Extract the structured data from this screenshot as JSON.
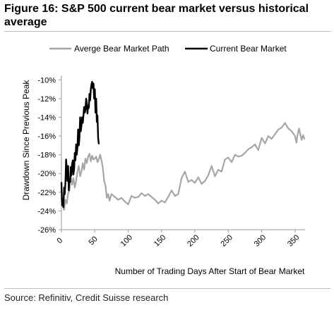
{
  "figure": {
    "title": "Figure 16: S&P 500 current bear market versus historical average",
    "source": "Source: Refinitiv, Credit Suisse research"
  },
  "chart_data": {
    "type": "line",
    "xlabel": "Number of Trading Days After Start of Bear Market",
    "ylabel": "Drawdown Since Previous Peak",
    "xlim": [
      0,
      365
    ],
    "ylim": [
      -26,
      -9
    ],
    "x_ticks": [
      0,
      50,
      100,
      150,
      200,
      250,
      300,
      350
    ],
    "x_tick_labels": [
      "0",
      "50",
      "100",
      "150",
      "200",
      "250",
      "300",
      "350"
    ],
    "y_ticks": [
      -10,
      -12,
      -14,
      -16,
      -18,
      -20,
      -22,
      -24,
      -26
    ],
    "y_tick_labels": [
      "-10%",
      "-12%",
      "-14%",
      "-16%",
      "-18%",
      "-20%",
      "-22%",
      "-24%",
      "-26%"
    ],
    "grid": false,
    "legend_position": "top",
    "series": [
      {
        "name": "Averge Bear Market Path",
        "color": "#a6a6a6",
        "x": [
          0,
          2,
          4,
          6,
          8,
          10,
          12,
          14,
          16,
          18,
          20,
          22,
          24,
          26,
          28,
          30,
          32,
          34,
          36,
          38,
          40,
          42,
          44,
          46,
          48,
          50,
          52,
          54,
          56,
          58,
          60,
          62,
          64,
          66,
          68,
          70,
          72,
          75,
          80,
          85,
          90,
          95,
          100,
          105,
          110,
          115,
          120,
          125,
          130,
          135,
          140,
          145,
          150,
          155,
          160,
          165,
          170,
          175,
          180,
          185,
          190,
          195,
          200,
          205,
          210,
          215,
          220,
          225,
          230,
          235,
          240,
          245,
          250,
          255,
          260,
          265,
          270,
          275,
          280,
          285,
          290,
          295,
          300,
          305,
          310,
          315,
          320,
          325,
          330,
          335,
          340,
          345,
          350,
          352,
          354,
          356,
          358,
          360,
          362,
          364
        ],
        "values": [
          -22.6,
          -23.4,
          -23.9,
          -22.8,
          -23.2,
          -22.1,
          -21.8,
          -20.3,
          -21.2,
          -20.5,
          -21.5,
          -20.8,
          -19.8,
          -19.2,
          -20.3,
          -19.8,
          -18.9,
          -19.6,
          -18.4,
          -18.9,
          -18.2,
          -17.9,
          -18.7,
          -18.1,
          -18.5,
          -18.4,
          -18.2,
          -18.8,
          -18.5,
          -18.0,
          -18.6,
          -19.4,
          -20.8,
          -21.3,
          -22.6,
          -22.2,
          -22.9,
          -22.2,
          -22.5,
          -22.8,
          -22.6,
          -23.0,
          -23.3,
          -22.4,
          -22.6,
          -22.5,
          -22.1,
          -22.4,
          -22.2,
          -22.5,
          -22.8,
          -23.2,
          -22.9,
          -23.1,
          -22.5,
          -21.8,
          -22.4,
          -22.2,
          -20.5,
          -19.8,
          -20.9,
          -20.7,
          -21.0,
          -20.4,
          -21.1,
          -20.8,
          -20.2,
          -19.2,
          -20.3,
          -19.6,
          -19.8,
          -18.5,
          -18.3,
          -18.8,
          -18.0,
          -18.2,
          -18.1,
          -17.8,
          -17.4,
          -17.2,
          -16.9,
          -17.5,
          -16.2,
          -16.8,
          -16.0,
          -16.3,
          -15.8,
          -15.3,
          -15.1,
          -14.6,
          -15.2,
          -15.5,
          -16.0,
          -16.7,
          -15.8,
          -15.2,
          -15.9,
          -16.4,
          -15.9,
          -16.3
        ]
      },
      {
        "name": "Current Bear Market",
        "color": "#000000",
        "x": [
          0,
          1,
          2,
          3,
          4,
          5,
          6,
          7,
          8,
          9,
          10,
          11,
          12,
          13,
          14,
          15,
          16,
          17,
          18,
          19,
          20,
          21,
          22,
          23,
          24,
          25,
          26,
          27,
          28,
          29,
          30,
          31,
          32,
          33,
          34,
          35,
          36,
          37,
          38,
          39,
          40,
          41,
          42,
          43,
          44,
          45,
          46,
          47,
          48,
          49,
          50,
          51,
          52,
          53,
          54,
          55,
          56
        ],
        "values": [
          -21.0,
          -23.4,
          -22.8,
          -23.6,
          -21.5,
          -22.2,
          -20.9,
          -18.5,
          -19.6,
          -20.8,
          -19.2,
          -21.8,
          -20.6,
          -20.9,
          -19.3,
          -20.2,
          -19.0,
          -18.6,
          -20.1,
          -19.5,
          -17.8,
          -18.6,
          -16.9,
          -18.0,
          -17.2,
          -15.3,
          -17.0,
          -16.2,
          -14.0,
          -15.5,
          -14.9,
          -14.0,
          -14.6,
          -13.8,
          -12.9,
          -13.5,
          -13.2,
          -12.0,
          -12.4,
          -13.6,
          -12.8,
          -13.0,
          -11.5,
          -12.2,
          -11.0,
          -10.5,
          -10.2,
          -10.9,
          -10.4,
          -12.0,
          -11.0,
          -13.5,
          -12.0,
          -14.5,
          -13.8,
          -16.2,
          -16.8
        ]
      }
    ]
  }
}
